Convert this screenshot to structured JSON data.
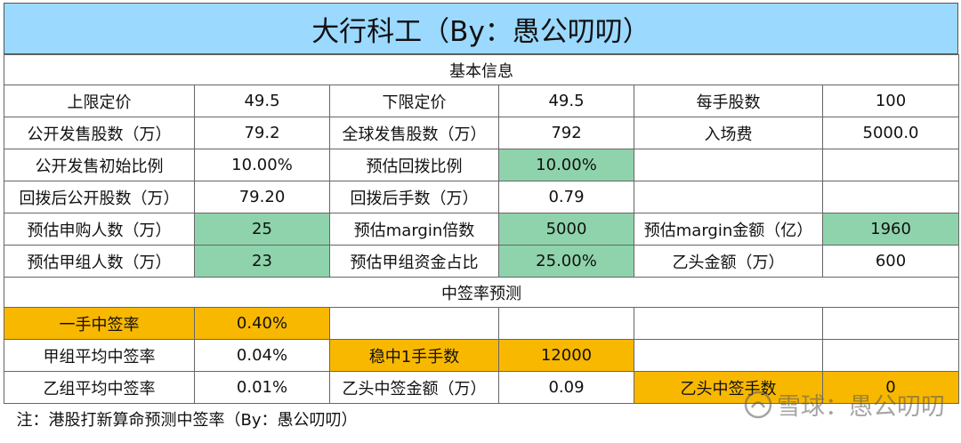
{
  "title": "大行科工（By：愚公叨叨）",
  "section_basic": "基本信息",
  "section_forecast": "中签率预测",
  "rows": [
    {
      "c": [
        "上限定价",
        "49.5",
        "下限定价",
        "49.5",
        "每手股数",
        "100"
      ]
    },
    {
      "c": [
        "公开发售股数（万）",
        "79.2",
        "全球发售股数（万）",
        "792",
        "入场费",
        "5000.0"
      ]
    },
    {
      "c": [
        "公开发售初始比例",
        "10.00%",
        "预估回拨比例",
        "10.00%",
        "",
        ""
      ]
    },
    {
      "c": [
        "回拨后公开股数（万）",
        "79.20",
        "回拨后手数（万）",
        "0.79",
        "",
        ""
      ]
    },
    {
      "c": [
        "预估申购人数（万）",
        "25",
        "预估margin倍数",
        "5000",
        "预估margin金额（亿）",
        "1960"
      ]
    },
    {
      "c": [
        "预估甲组人数（万）",
        "23",
        "预估甲组资金占比",
        "25.00%",
        "乙头金额（万）",
        "600"
      ]
    }
  ],
  "forecast_rows": [
    {
      "c": [
        "一手中签率",
        "0.40%",
        "",
        "",
        "",
        ""
      ]
    },
    {
      "c": [
        "甲组平均中签率",
        "0.04%",
        "稳中1手手数",
        "12000",
        "",
        ""
      ]
    },
    {
      "c": [
        "乙组平均中签率",
        "0.01%",
        "乙头中签金额（万）",
        "0.09",
        "乙头中签手数",
        "0"
      ]
    }
  ],
  "note": "注：港股打新算命预测中签率（By：愚公叨叨）",
  "watermark": "雪球：愚公叨叨",
  "colors": {
    "title_bg": "#9bd9ff",
    "green": "#8fd3ac",
    "orange": "#f9b800"
  }
}
